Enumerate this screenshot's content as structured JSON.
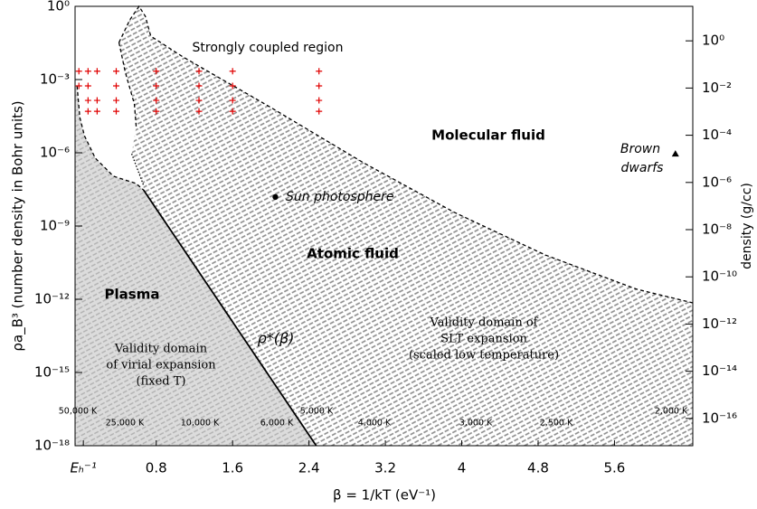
{
  "chart_data": {
    "type": "line",
    "xlabel": "β = 1/kT (eV⁻¹)",
    "ylabel": "ρa_B³ (number density in Bohr units)",
    "y2label": "density (g/cc)",
    "xlim": [
      -0.05,
      6.42
    ],
    "xticks": [
      {
        "value": 0.0367,
        "label": "Eₕ⁻¹"
      },
      0.8,
      1.6,
      2.4,
      3.2,
      4,
      4.8,
      5.6
    ],
    "ylim": [
      1e-18,
      1
    ],
    "yscale": "log",
    "yticks": [
      {
        "value": 1,
        "label": "10⁰"
      },
      {
        "value": 0.001,
        "label": "10⁻³"
      },
      {
        "value": 1e-06,
        "label": "10⁻⁶"
      },
      {
        "value": 1e-09,
        "label": "10⁻⁹"
      },
      {
        "value": 1e-12,
        "label": "10⁻¹²"
      },
      {
        "value": 1e-15,
        "label": "10⁻¹⁵"
      },
      {
        "value": 1e-18,
        "label": "10⁻¹⁸"
      }
    ],
    "y2lim": [
      7e-18,
      29
    ],
    "y2ticks": [
      {
        "value": 1,
        "label": "10⁰"
      },
      {
        "value": 0.01,
        "label": "10⁻²"
      },
      {
        "value": 0.0001,
        "label": "10⁻⁴"
      },
      {
        "value": 1e-06,
        "label": "10⁻⁶"
      },
      {
        "value": 1e-08,
        "label": "10⁻⁸"
      },
      {
        "value": 1e-10,
        "label": "10⁻¹⁰"
      },
      {
        "value": 1e-12,
        "label": "10⁻¹²"
      },
      {
        "value": 1e-14,
        "label": "10⁻¹⁴"
      },
      {
        "value": 1e-16,
        "label": "10⁻¹⁶"
      }
    ],
    "series": [
      {
        "style": "dashed",
        "color": "#000",
        "x": [
          0.41,
          0.524,
          0.62,
          0.686,
          0.743,
          1.067,
          2.019,
          2.971,
          3.924,
          4.876,
          5.829,
          6.42
        ],
        "values": [
          0.033,
          0.28,
          1,
          0.39,
          0.06,
          0.0091,
          6.5e-05,
          3.9e-07,
          3.6e-09,
          6.5e-11,
          2.6e-12,
          7.1e-13
        ]
      },
      {
        "style": "dashed",
        "color": "#000",
        "x": [
          0.41,
          0.476,
          0.571,
          0.59
        ],
        "values": [
          0.033,
          0.002,
          0.0001,
          1.2e-05
        ]
      },
      {
        "style": "dotted",
        "color": "#000",
        "x": [
          0.543,
          0.667
        ],
        "values": [
          9.1e-07,
          4.7e-08
        ]
      },
      {
        "style": "dashed",
        "color": "#000",
        "x": [
          -0.029,
          0,
          0.048,
          0.162,
          0.352,
          0.59,
          0.667
        ],
        "values": [
          0.00055,
          2.8e-05,
          5e-06,
          6e-07,
          1.1e-07,
          5.5e-08,
          3e-08
        ]
      },
      {
        "style": "solid",
        "color": "#000",
        "x": [
          0.667,
          2.476
        ],
        "values": [
          3e-08,
          1e-18
        ]
      },
      {
        "type": "scatter",
        "marker": "plus",
        "color": "#e00000",
        "x": [
          -0.01,
          0.086,
          0.181,
          0.381,
          0.8,
          1.248,
          1.6,
          2.505,
          -0.01,
          0.086,
          0.381,
          0.8,
          1.248,
          1.6,
          2.505,
          0.086,
          0.181,
          0.381,
          0.8,
          1.248,
          1.6,
          2.505,
          0.086,
          0.181,
          0.381,
          0.8,
          1.248,
          1.6,
          2.505
        ],
        "values": [
          0.0022,
          0.0022,
          0.0022,
          0.0022,
          0.0022,
          0.0022,
          0.0022,
          0.0022,
          0.00055,
          0.00055,
          0.00055,
          0.00055,
          0.00055,
          0.00055,
          0.00055,
          0.00014,
          0.00014,
          0.00014,
          0.00014,
          0.00014,
          0.00014,
          0.00014,
          5e-05,
          5e-05,
          5e-05,
          5e-05,
          5e-05,
          5e-05,
          5e-05
        ]
      },
      {
        "type": "scatter",
        "marker": "circle",
        "color": "#000",
        "x": [
          2.048
        ],
        "values": [
          1.55e-08
        ]
      },
      {
        "type": "scatter",
        "marker": "triangle",
        "color": "#000",
        "x": [
          6.238
        ],
        "values": [
          9.1e-07
        ]
      }
    ],
    "annotations": {
      "strongly_coupled": "Strongly coupled region",
      "molecular": "Molecular fluid",
      "atomic": "Atomic fluid",
      "plasma": "Plasma",
      "slt": [
        "Validity domain of",
        "SLT expansion",
        "(scaled low temperature)"
      ],
      "virial": [
        "Validity domain",
        "of virial expansion",
        "(fixed T)"
      ],
      "rho_star": "ρ*(β)",
      "sun": "Sun photosphere",
      "brown": [
        "Brown",
        "dwarfs"
      ],
      "temperatures": [
        "50,000 K",
        "25,000 K",
        "10,000 K",
        "6,000 K",
        "5,000 K",
        "4,000 K",
        "3,000 K",
        "2,500 K",
        "2,000 K"
      ]
    }
  }
}
